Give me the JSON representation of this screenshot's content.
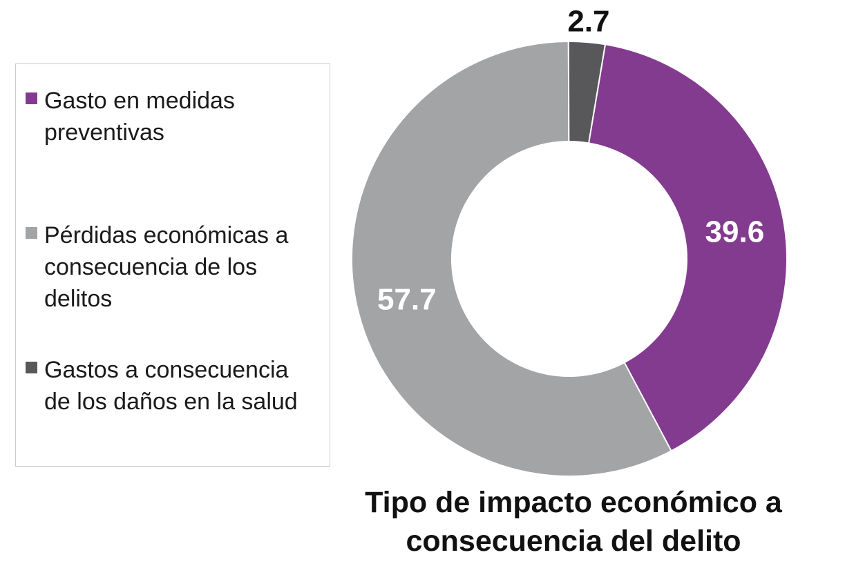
{
  "chart_data": {
    "type": "pie",
    "variant": "donut",
    "title": "Tipo de impacto económico a consecuencia del delito",
    "legend_position": "left",
    "series": [
      {
        "name": "Gasto en medidas preventivas",
        "value": 39.6,
        "label": "39.6",
        "color": "#833b8f",
        "label_color": "#ffffff"
      },
      {
        "name": "Pérdidas económicas a consecuencia de los delitos",
        "value": 57.7,
        "label": "57.7",
        "color": "#a2a4a6",
        "label_color": "#ffffff"
      },
      {
        "name": "Gastos a consecuencia de los daños en la salud",
        "value": 2.7,
        "label": "2.7",
        "color": "#58585a",
        "label_color": "#111111"
      }
    ]
  }
}
